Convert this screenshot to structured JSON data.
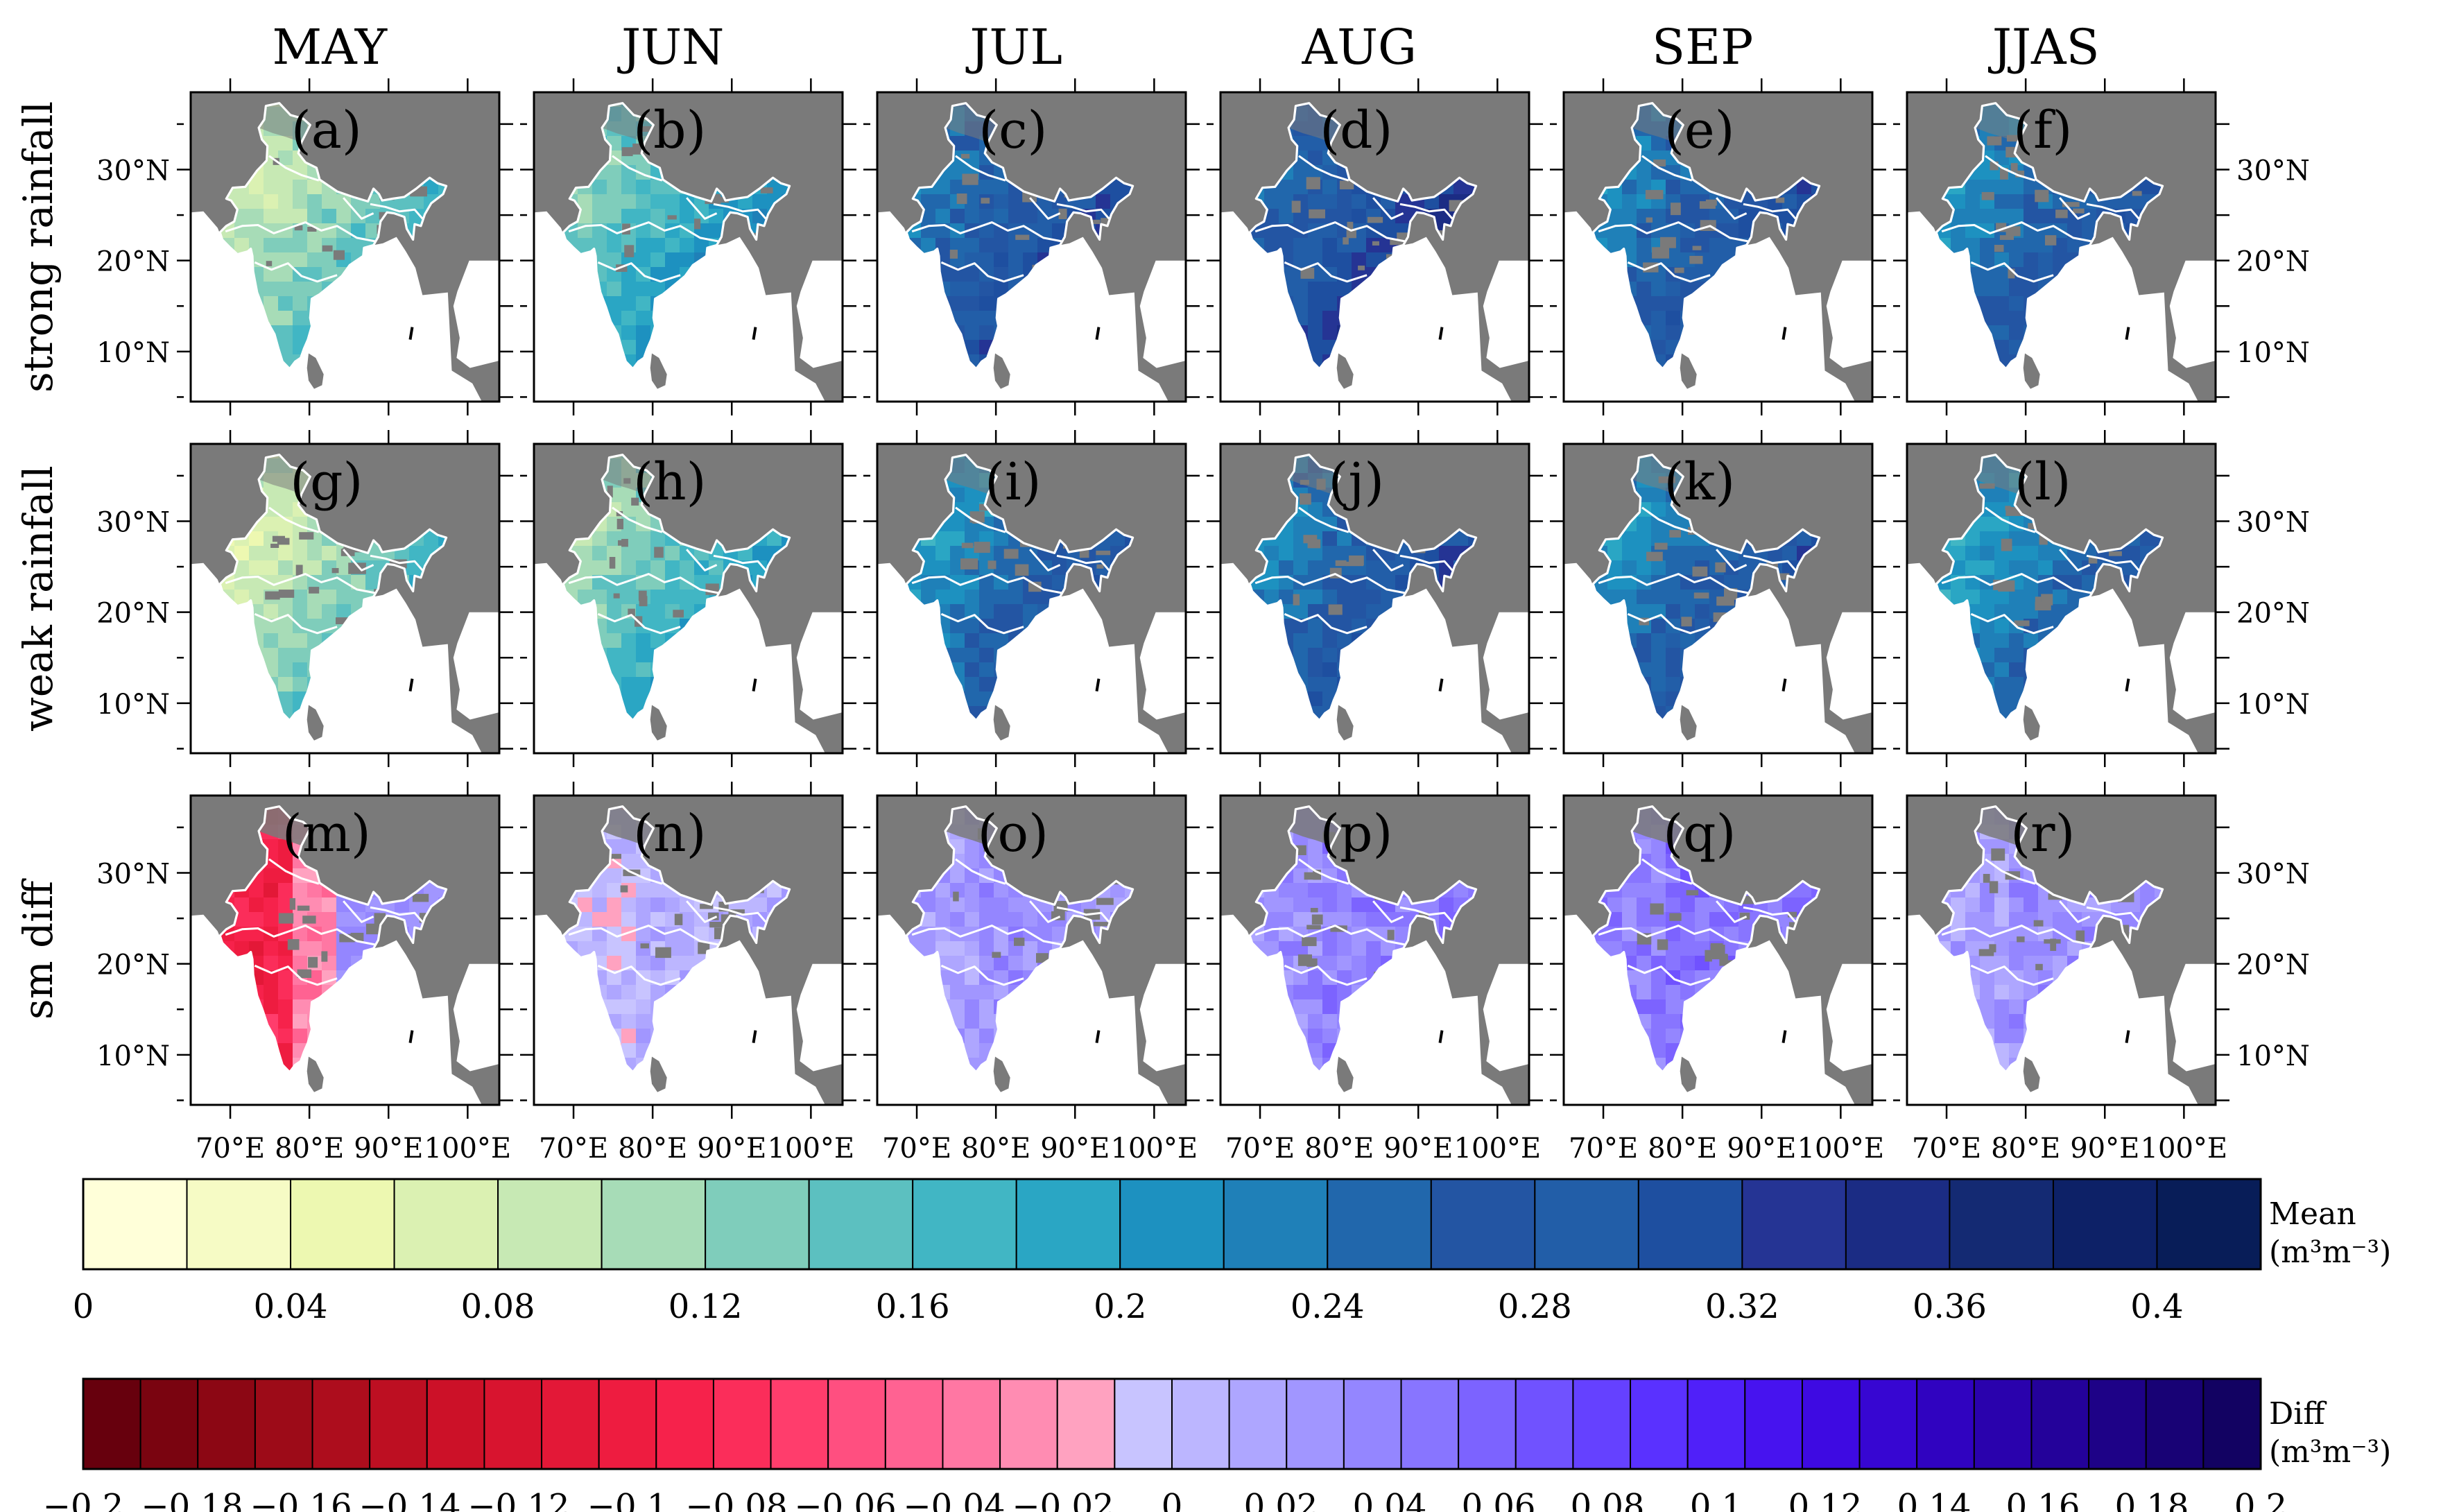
{
  "figure": {
    "months": [
      "MAY",
      "JUN",
      "JUL",
      "AUG",
      "SEP",
      "JJAS"
    ],
    "rows": [
      {
        "label": "strong rainfall",
        "panels": [
          "(a)",
          "(b)",
          "(c)",
          "(d)",
          "(e)",
          "(f)"
        ],
        "kind": "mean",
        "intensity": [
          0.12,
          0.17,
          0.27,
          0.29,
          0.26,
          0.25
        ]
      },
      {
        "label": "weak rainfall",
        "panels": [
          "(g)",
          "(h)",
          "(i)",
          "(j)",
          "(k)",
          "(l)"
        ],
        "kind": "mean",
        "intensity": [
          0.11,
          0.15,
          0.24,
          0.26,
          0.25,
          0.23
        ]
      },
      {
        "label": "sm diff",
        "panels": [
          "(m)",
          "(n)",
          "(o)",
          "(p)",
          "(q)",
          "(r)"
        ],
        "kind": "diff",
        "intensity": [
          -0.03,
          0.01,
          0.03,
          0.04,
          0.05,
          0.03
        ]
      }
    ],
    "lat_labels": [
      "30°N",
      "20°N",
      "10°N"
    ],
    "lon_labels": [
      "70°E",
      "80°E",
      "90°E",
      "100°E"
    ],
    "colors": {
      "ocean": "#ffffff",
      "land_mask": "#7a7a7a",
      "boundary": "#ffffff"
    }
  },
  "colorbars": {
    "mean": {
      "title": "Mean",
      "unit": "(m³m⁻³)",
      "ticks": [
        "0",
        "0.04",
        "0.08",
        "0.12",
        "0.16",
        "0.2",
        "0.24",
        "0.28",
        "0.32",
        "0.36",
        "0.4"
      ],
      "range": [
        0,
        0.42
      ],
      "colors": [
        "#ffffd9",
        "#f6fbc5",
        "#edf8b1",
        "#dbf1b2",
        "#c7e9b4",
        "#a7dcb7",
        "#7fcdbb",
        "#5cc0c0",
        "#41b6c4",
        "#2aa6c4",
        "#1d91c0",
        "#1f80b8",
        "#2167ac",
        "#2355a3",
        "#225ea8",
        "#1e4fa0",
        "#253494",
        "#1b2c84",
        "#142a73",
        "#0d2167",
        "#081d58"
      ]
    },
    "diff": {
      "title": "Diff",
      "unit": "(m³m⁻³)",
      "ticks": [
        "-0.2",
        "-0.18",
        "-0.16",
        "-0.14",
        "-0.12",
        "-0.1",
        "-0.08",
        "-0.06",
        "-0.04",
        "-0.02",
        "0",
        "0.02",
        "0.04",
        "0.06",
        "0.08",
        "0.1",
        "0.12",
        "0.14",
        "0.16",
        "0.18",
        "0.2"
      ],
      "range": [
        -0.2,
        0.2
      ],
      "colors": [
        "#67000d",
        "#7a0410",
        "#8c0714",
        "#9d0b18",
        "#ad0d1d",
        "#bd0f22",
        "#cc1128",
        "#d8142f",
        "#e31837",
        "#ee1c40",
        "#f6224b",
        "#fb2d5a",
        "#ff3d6c",
        "#ff4f80",
        "#ff6292",
        "#ff77a3",
        "#ff8cb2",
        "#ffa2c0",
        "#c8c4ff",
        "#bcb6ff",
        "#aea6ff",
        "#a196ff",
        "#9486ff",
        "#8875ff",
        "#7c63ff",
        "#7052ff",
        "#6541ff",
        "#5a31ff",
        "#5020f9",
        "#4713ef",
        "#3e0ae2",
        "#3706d2",
        "#3003c0",
        "#2a02ad",
        "#24029a",
        "#1e0287",
        "#180275",
        "#120262"
      ]
    }
  }
}
